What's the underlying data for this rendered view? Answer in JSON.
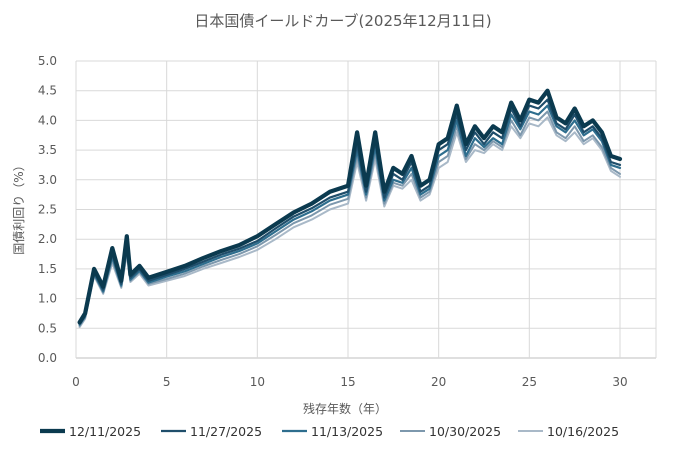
{
  "chart_data": {
    "type": "line",
    "title": "日本国債イールドカーブ(2025年12月11日)",
    "xlabel": "残存年数（年）",
    "ylabel": "国債利回り（%）",
    "xlim": [
      0,
      30
    ],
    "ylim": [
      0.0,
      5.0
    ],
    "x_ticks": [
      0,
      5,
      10,
      15,
      20,
      25,
      30
    ],
    "y_ticks": [
      "0.0",
      "0.5",
      "1.0",
      "1.5",
      "2.0",
      "2.5",
      "3.0",
      "3.5",
      "4.0",
      "4.5",
      "5.0"
    ],
    "grid": "both",
    "legend_position": "bottom",
    "x": [
      0.2,
      0.5,
      1.0,
      1.5,
      2.0,
      2.5,
      2.8,
      3.0,
      3.5,
      4.0,
      5.0,
      6.0,
      7.0,
      8.0,
      9.0,
      10.0,
      11.0,
      12.0,
      13.0,
      14.0,
      15.0,
      15.5,
      16.0,
      16.5,
      17.0,
      17.5,
      18.0,
      18.5,
      19.0,
      19.5,
      20.0,
      20.5,
      21.0,
      21.5,
      22.0,
      22.5,
      23.0,
      23.5,
      24.0,
      24.5,
      25.0,
      25.5,
      26.0,
      26.5,
      27.0,
      27.5,
      28.0,
      28.5,
      29.0,
      29.5,
      30.0
    ],
    "series": [
      {
        "name": "12/11/2025",
        "color": "#0b3a4f",
        "width": 4.2,
        "values": [
          0.6,
          0.75,
          1.5,
          1.2,
          1.85,
          1.3,
          2.05,
          1.4,
          1.55,
          1.35,
          1.45,
          1.55,
          1.68,
          1.8,
          1.9,
          2.05,
          2.25,
          2.45,
          2.6,
          2.8,
          2.9,
          3.8,
          2.9,
          3.8,
          2.8,
          3.2,
          3.1,
          3.4,
          2.9,
          3.0,
          3.6,
          3.7,
          4.25,
          3.6,
          3.9,
          3.7,
          3.9,
          3.8,
          4.3,
          4.0,
          4.35,
          4.3,
          4.5,
          4.05,
          3.95,
          4.2,
          3.9,
          4.0,
          3.8,
          3.4,
          3.35
        ]
      },
      {
        "name": "11/27/2025",
        "color": "#1f4e6b",
        "width": 2.2,
        "values": [
          0.58,
          0.72,
          1.45,
          1.15,
          1.75,
          1.25,
          1.9,
          1.35,
          1.5,
          1.3,
          1.4,
          1.5,
          1.62,
          1.74,
          1.84,
          1.97,
          2.18,
          2.38,
          2.52,
          2.7,
          2.8,
          3.6,
          2.8,
          3.65,
          2.7,
          3.1,
          3.0,
          3.3,
          2.8,
          2.9,
          3.5,
          3.6,
          4.1,
          3.5,
          3.8,
          3.6,
          3.8,
          3.7,
          4.2,
          3.9,
          4.25,
          4.2,
          4.35,
          3.95,
          3.85,
          4.1,
          3.8,
          3.9,
          3.7,
          3.3,
          3.25
        ]
      },
      {
        "name": "11/13/2025",
        "color": "#2e6e8e",
        "width": 2.2,
        "values": [
          0.56,
          0.7,
          1.42,
          1.12,
          1.7,
          1.22,
          1.85,
          1.32,
          1.47,
          1.27,
          1.37,
          1.46,
          1.58,
          1.7,
          1.8,
          1.93,
          2.13,
          2.33,
          2.47,
          2.65,
          2.75,
          3.5,
          2.75,
          3.55,
          2.65,
          3.0,
          2.95,
          3.2,
          2.75,
          2.85,
          3.4,
          3.5,
          4.0,
          3.4,
          3.7,
          3.55,
          3.7,
          3.6,
          4.1,
          3.85,
          4.15,
          4.1,
          4.25,
          3.9,
          3.8,
          4.0,
          3.75,
          3.85,
          3.65,
          3.25,
          3.2
        ]
      },
      {
        "name": "10/30/2025",
        "color": "#7d98ad",
        "width": 2.0,
        "values": [
          0.54,
          0.68,
          1.4,
          1.1,
          1.65,
          1.2,
          1.8,
          1.3,
          1.45,
          1.25,
          1.33,
          1.42,
          1.54,
          1.65,
          1.75,
          1.88,
          2.07,
          2.27,
          2.4,
          2.58,
          2.68,
          3.4,
          2.7,
          3.45,
          2.6,
          2.95,
          2.9,
          3.1,
          2.7,
          2.8,
          3.3,
          3.4,
          3.9,
          3.35,
          3.6,
          3.5,
          3.65,
          3.55,
          4.0,
          3.75,
          4.05,
          4.0,
          4.15,
          3.8,
          3.7,
          3.9,
          3.65,
          3.75,
          3.55,
          3.2,
          3.1
        ]
      },
      {
        "name": "10/16/2025",
        "color": "#a9b9c8",
        "width": 2.0,
        "values": [
          0.52,
          0.66,
          1.38,
          1.08,
          1.6,
          1.18,
          1.75,
          1.28,
          1.42,
          1.22,
          1.3,
          1.38,
          1.5,
          1.6,
          1.7,
          1.82,
          2.0,
          2.2,
          2.33,
          2.5,
          2.6,
          3.3,
          2.65,
          3.35,
          2.55,
          2.9,
          2.85,
          3.0,
          2.65,
          2.75,
          3.2,
          3.3,
          3.8,
          3.3,
          3.5,
          3.45,
          3.6,
          3.5,
          3.9,
          3.7,
          3.95,
          3.9,
          4.05,
          3.75,
          3.65,
          3.8,
          3.6,
          3.7,
          3.5,
          3.15,
          3.05
        ]
      }
    ]
  }
}
